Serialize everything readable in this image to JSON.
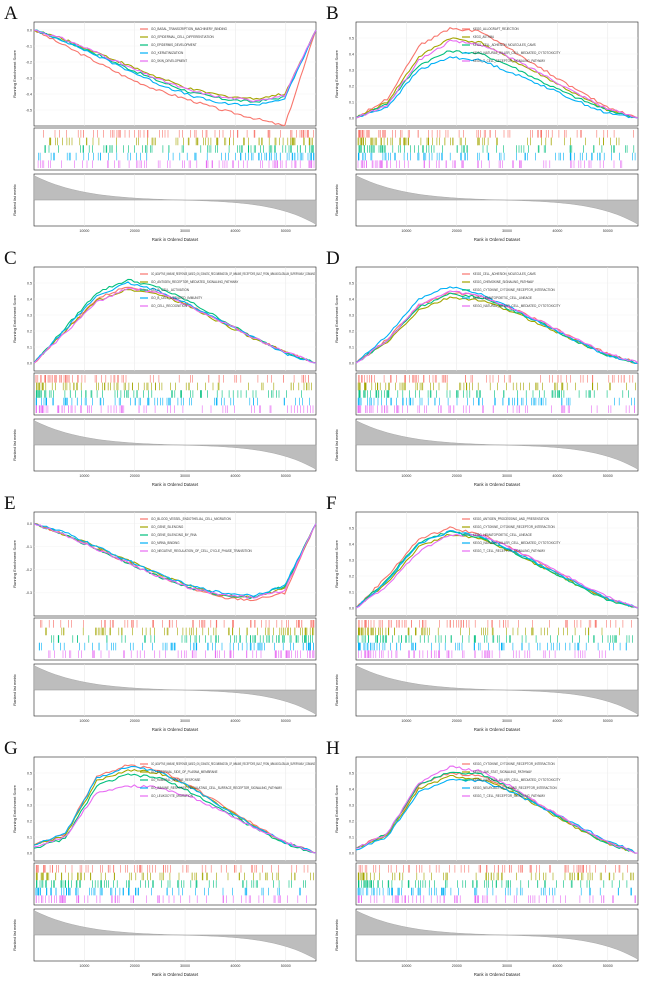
{
  "figure": {
    "y_label_es": "Running Enrichment Score",
    "y_label_rank": "Ranked list metric",
    "x_label": "Rank in Ordered Dataset",
    "x_ticks": [
      "10000",
      "20000",
      "30000",
      "40000",
      "50000"
    ]
  },
  "colors": [
    "#f8766d",
    "#a3a500",
    "#00bf7d",
    "#00b0f6",
    "#e76bf3"
  ],
  "chart_data": [
    {
      "panel": "A",
      "type": "line",
      "direction": "negative",
      "xlim": [
        0,
        56000
      ],
      "ylim": [
        -0.6,
        0.05
      ],
      "y_ticks": [
        "0.0",
        "-0.1",
        "-0.2",
        "-0.3",
        "-0.4",
        "-0.5"
      ],
      "series": [
        {
          "name": "GO_BASAL_TRANSCRIPTION_MACHINERY_BINDING",
          "values": [
            0,
            -0.1,
            -0.2,
            -0.3,
            -0.38,
            -0.44,
            -0.5,
            -0.55,
            -0.6,
            0.0
          ]
        },
        {
          "name": "GO_EPIDERMAL_CELL_DIFFERENTIATION",
          "values": [
            0,
            -0.06,
            -0.14,
            -0.22,
            -0.3,
            -0.37,
            -0.41,
            -0.43,
            -0.4,
            0.0
          ]
        },
        {
          "name": "GO_EPIDERMIS_DEVELOPMENT",
          "values": [
            0,
            -0.07,
            -0.15,
            -0.24,
            -0.32,
            -0.39,
            -0.43,
            -0.45,
            -0.42,
            0.0
          ]
        },
        {
          "name": "GO_KERATINIZATION",
          "values": [
            0,
            -0.07,
            -0.16,
            -0.25,
            -0.34,
            -0.41,
            -0.46,
            -0.47,
            -0.43,
            0.0
          ]
        },
        {
          "name": "GO_SKIN_DEVELOPMENT",
          "values": [
            0,
            -0.06,
            -0.14,
            -0.23,
            -0.31,
            -0.38,
            -0.42,
            -0.44,
            -0.41,
            0.0
          ]
        }
      ]
    },
    {
      "panel": "B",
      "type": "line",
      "direction": "positive",
      "xlim": [
        0,
        56000
      ],
      "ylim": [
        -0.05,
        0.6
      ],
      "y_ticks": [
        "0.5",
        "0.4",
        "0.3",
        "0.2",
        "0.1",
        "0.0"
      ],
      "series": [
        {
          "name": "KEGG_ALLOGRAFT_REJECTION",
          "values": [
            0,
            0.12,
            0.45,
            0.56,
            0.54,
            0.42,
            0.3,
            0.18,
            0.07,
            0.0
          ]
        },
        {
          "name": "KEGG_ASTHMA",
          "values": [
            0,
            0.1,
            0.38,
            0.5,
            0.47,
            0.36,
            0.26,
            0.15,
            0.05,
            0.0
          ]
        },
        {
          "name": "KEGG_CELL_ADHESION_MOLECULES_CAMS",
          "values": [
            0,
            0.09,
            0.33,
            0.42,
            0.4,
            0.32,
            0.22,
            0.13,
            0.05,
            0.0
          ]
        },
        {
          "name": "KEGG_NATURAL_KILLER_CELL_MEDIATED_CYTOTOXICITY",
          "values": [
            0,
            0.07,
            0.3,
            0.38,
            0.36,
            0.28,
            0.2,
            0.11,
            0.03,
            0.0
          ]
        },
        {
          "name": "KEGG_T_CELL_RECEPTOR_SIGNALING_PATHWAY",
          "values": [
            0,
            0.08,
            0.36,
            0.48,
            0.46,
            0.37,
            0.27,
            0.16,
            0.06,
            0.0
          ]
        }
      ]
    },
    {
      "panel": "C",
      "type": "line",
      "direction": "positive",
      "xlim": [
        0,
        56000
      ],
      "ylim": [
        -0.05,
        0.6
      ],
      "y_ticks": [
        "0.5",
        "0.4",
        "0.3",
        "0.2",
        "0.1",
        "0.0"
      ],
      "series": [
        {
          "name": "GO_ADAPTIVE_IMMUNE_RESPONSE_BASED_ON_SOMATIC_RECOMBINATION_OF_IMMUNE_RECEPTORS_BUILT_FROM_IMMUNOGLOBULIN_SUPERFAMILY_DOMAINS",
          "values": [
            0,
            0.2,
            0.4,
            0.48,
            0.44,
            0.36,
            0.26,
            0.16,
            0.07,
            0.0
          ]
        },
        {
          "name": "GO_ANTIGEN_RECEPTOR_MEDIATED_SIGNALING_PATHWAY",
          "values": [
            0,
            0.2,
            0.39,
            0.46,
            0.43,
            0.35,
            0.25,
            0.15,
            0.07,
            0.0
          ]
        },
        {
          "name": "GO_B_CELL_ACTIVATION",
          "values": [
            0,
            0.22,
            0.44,
            0.52,
            0.47,
            0.38,
            0.27,
            0.16,
            0.07,
            0.0
          ]
        },
        {
          "name": "GO_B_CELL_MEDIATED_IMMUNITY",
          "values": [
            0,
            0.21,
            0.42,
            0.5,
            0.45,
            0.36,
            0.26,
            0.16,
            0.06,
            0.0
          ]
        },
        {
          "name": "GO_CELL_RECOGNITION",
          "values": [
            0,
            0.19,
            0.38,
            0.47,
            0.44,
            0.35,
            0.26,
            0.16,
            0.07,
            0.0
          ]
        }
      ]
    },
    {
      "panel": "D",
      "type": "line",
      "direction": "positive",
      "xlim": [
        0,
        56000
      ],
      "ylim": [
        -0.05,
        0.6
      ],
      "y_ticks": [
        "0.5",
        "0.4",
        "0.3",
        "0.2",
        "0.1",
        "0.0"
      ],
      "series": [
        {
          "name": "KEGG_CELL_ADHESION_MOLECULES_CAMS",
          "values": [
            0,
            0.15,
            0.36,
            0.44,
            0.42,
            0.34,
            0.25,
            0.15,
            0.06,
            0.0
          ]
        },
        {
          "name": "KEGG_CHEMOKINE_SIGNALING_PATHWAY",
          "values": [
            0,
            0.13,
            0.33,
            0.41,
            0.39,
            0.32,
            0.23,
            0.14,
            0.05,
            0.0
          ]
        },
        {
          "name": "KEGG_CYTOKINE_CYTOKINE_RECEPTOR_INTERACTION",
          "values": [
            0,
            0.14,
            0.35,
            0.43,
            0.41,
            0.33,
            0.24,
            0.14,
            0.05,
            0.0
          ]
        },
        {
          "name": "KEGG_HEMATOPOIETIC_CELL_LINEAGE",
          "values": [
            0,
            0.17,
            0.4,
            0.48,
            0.43,
            0.34,
            0.24,
            0.14,
            0.05,
            0.0
          ]
        },
        {
          "name": "KEGG_NATURAL_KILLER_CELL_MEDIATED_CYTOTOXICITY",
          "values": [
            0,
            0.14,
            0.36,
            0.45,
            0.42,
            0.34,
            0.25,
            0.15,
            0.06,
            0.0
          ]
        }
      ]
    },
    {
      "panel": "E",
      "type": "line",
      "direction": "negative",
      "xlim": [
        0,
        56000
      ],
      "ylim": [
        -0.4,
        0.05
      ],
      "y_ticks": [
        "0.0",
        "-0.1",
        "-0.2",
        "-0.3"
      ],
      "series": [
        {
          "name": "GO_BLOOD_VESSEL_ENDOTHELIAL_CELL_MIGRATION",
          "values": [
            0,
            -0.05,
            -0.11,
            -0.17,
            -0.23,
            -0.28,
            -0.32,
            -0.33,
            -0.3,
            0.0
          ]
        },
        {
          "name": "GO_GENE_SILENCING",
          "values": [
            0,
            -0.05,
            -0.1,
            -0.16,
            -0.22,
            -0.27,
            -0.31,
            -0.32,
            -0.28,
            0.0
          ]
        },
        {
          "name": "GO_GENE_SILENCING_BY_RNA",
          "values": [
            0,
            -0.05,
            -0.11,
            -0.17,
            -0.23,
            -0.28,
            -0.31,
            -0.32,
            -0.27,
            0.0
          ]
        },
        {
          "name": "GO_MRNA_BINDING",
          "values": [
            0,
            -0.04,
            -0.1,
            -0.16,
            -0.22,
            -0.27,
            -0.3,
            -0.31,
            -0.27,
            0.0
          ]
        },
        {
          "name": "GO_NEGATIVE_REGULATION_OF_CELL_CYCLE_PHASE_TRANSITION",
          "values": [
            0,
            -0.05,
            -0.11,
            -0.17,
            -0.23,
            -0.28,
            -0.31,
            -0.32,
            -0.29,
            0.0
          ]
        }
      ]
    },
    {
      "panel": "F",
      "type": "line",
      "direction": "positive",
      "xlim": [
        0,
        56000
      ],
      "ylim": [
        -0.05,
        0.6
      ],
      "y_ticks": [
        "0.5",
        "0.4",
        "0.3",
        "0.2",
        "0.1",
        "0.0"
      ],
      "series": [
        {
          "name": "KEGG_ANTIGEN_PROCESSING_AND_PRESENTATION",
          "values": [
            0,
            0.2,
            0.43,
            0.5,
            0.46,
            0.37,
            0.27,
            0.16,
            0.06,
            0.0
          ]
        },
        {
          "name": "KEGG_CYTOKINE_CYTOKINE_RECEPTOR_INTERACTION",
          "values": [
            0,
            0.16,
            0.38,
            0.46,
            0.43,
            0.35,
            0.25,
            0.15,
            0.06,
            0.0
          ]
        },
        {
          "name": "KEGG_HEMATOPOIETIC_CELL_LINEAGE",
          "values": [
            0,
            0.18,
            0.41,
            0.48,
            0.44,
            0.35,
            0.25,
            0.15,
            0.05,
            0.0
          ]
        },
        {
          "name": "KEGG_NATURAL_KILLER_CELL_MEDIATED_CYTOTOXICITY",
          "values": [
            0,
            0.17,
            0.4,
            0.48,
            0.45,
            0.36,
            0.26,
            0.16,
            0.06,
            0.0
          ]
        },
        {
          "name": "KEGG_T_CELL_RECEPTOR_SIGNALING_PATHWAY",
          "values": [
            0,
            0.14,
            0.35,
            0.46,
            0.45,
            0.37,
            0.27,
            0.17,
            0.07,
            0.0
          ]
        }
      ]
    },
    {
      "panel": "G",
      "type": "line",
      "direction": "positive",
      "xlim": [
        0,
        56000
      ],
      "ylim": [
        -0.05,
        0.6
      ],
      "y_ticks": [
        "0.5",
        "0.4",
        "0.3",
        "0.2",
        "0.1",
        "0.0"
      ],
      "series": [
        {
          "name": "GO_ADAPTIVE_IMMUNE_RESPONSE_BASED_ON_SOMATIC_RECOMBINATION_OF_IMMUNE_RECEPTORS_BUILT_FROM_IMMUNOGLOBULIN_SUPERFAMILY_DOMAINS",
          "values": [
            0.05,
            0.12,
            0.48,
            0.55,
            0.52,
            0.42,
            0.3,
            0.18,
            0.07,
            0.0
          ]
        },
        {
          "name": "GO_EXTERNAL_SIDE_OF_PLASMA_MEMBRANE",
          "values": [
            0.05,
            0.11,
            0.45,
            0.52,
            0.5,
            0.41,
            0.29,
            0.17,
            0.07,
            0.0
          ]
        },
        {
          "name": "GO_HUMORAL_IMMUNE_RESPONSE",
          "values": [
            0.03,
            0.09,
            0.42,
            0.49,
            0.47,
            0.38,
            0.27,
            0.16,
            0.06,
            0.0
          ]
        },
        {
          "name": "GO_IMMUNE_RESPONSE_REGULATING_CELL_SURFACE_RECEPTOR_SIGNALING_PATHWAY",
          "values": [
            0.05,
            0.12,
            0.47,
            0.54,
            0.51,
            0.41,
            0.29,
            0.17,
            0.07,
            0.0
          ]
        },
        {
          "name": "GO_LEUKOCYTE_MIGRATION",
          "values": [
            0.04,
            0.1,
            0.38,
            0.42,
            0.41,
            0.35,
            0.26,
            0.16,
            0.07,
            0.0
          ]
        }
      ]
    },
    {
      "panel": "H",
      "type": "line",
      "direction": "positive",
      "xlim": [
        0,
        56000
      ],
      "ylim": [
        -0.05,
        0.6
      ],
      "y_ticks": [
        "0.5",
        "0.4",
        "0.3",
        "0.2",
        "0.1",
        "0.0"
      ],
      "series": [
        {
          "name": "KEGG_CYTOKINE_CYTOKINE_RECEPTOR_INTERACTION",
          "values": [
            0.03,
            0.12,
            0.42,
            0.5,
            0.48,
            0.4,
            0.29,
            0.17,
            0.07,
            0.0
          ]
        },
        {
          "name": "KEGG_JAK_STAT_SIGNALING_PATHWAY",
          "values": [
            0.03,
            0.11,
            0.4,
            0.48,
            0.46,
            0.38,
            0.27,
            0.16,
            0.06,
            0.0
          ]
        },
        {
          "name": "KEGG_NATURAL_KILLER_CELL_MEDIATED_CYTOTOXICITY",
          "values": [
            0.03,
            0.12,
            0.43,
            0.51,
            0.49,
            0.4,
            0.28,
            0.17,
            0.06,
            0.0
          ]
        },
        {
          "name": "KEGG_NEUROACTIVE_LIGAND_RECEPTOR_INTERACTION",
          "values": [
            0.02,
            0.1,
            0.38,
            0.46,
            0.45,
            0.38,
            0.28,
            0.18,
            0.08,
            0.0
          ]
        },
        {
          "name": "KEGG_T_CELL_RECEPTOR_SIGNALING_PATHWAY",
          "values": [
            0.03,
            0.12,
            0.44,
            0.54,
            0.51,
            0.41,
            0.29,
            0.17,
            0.07,
            0.0
          ]
        }
      ]
    }
  ]
}
